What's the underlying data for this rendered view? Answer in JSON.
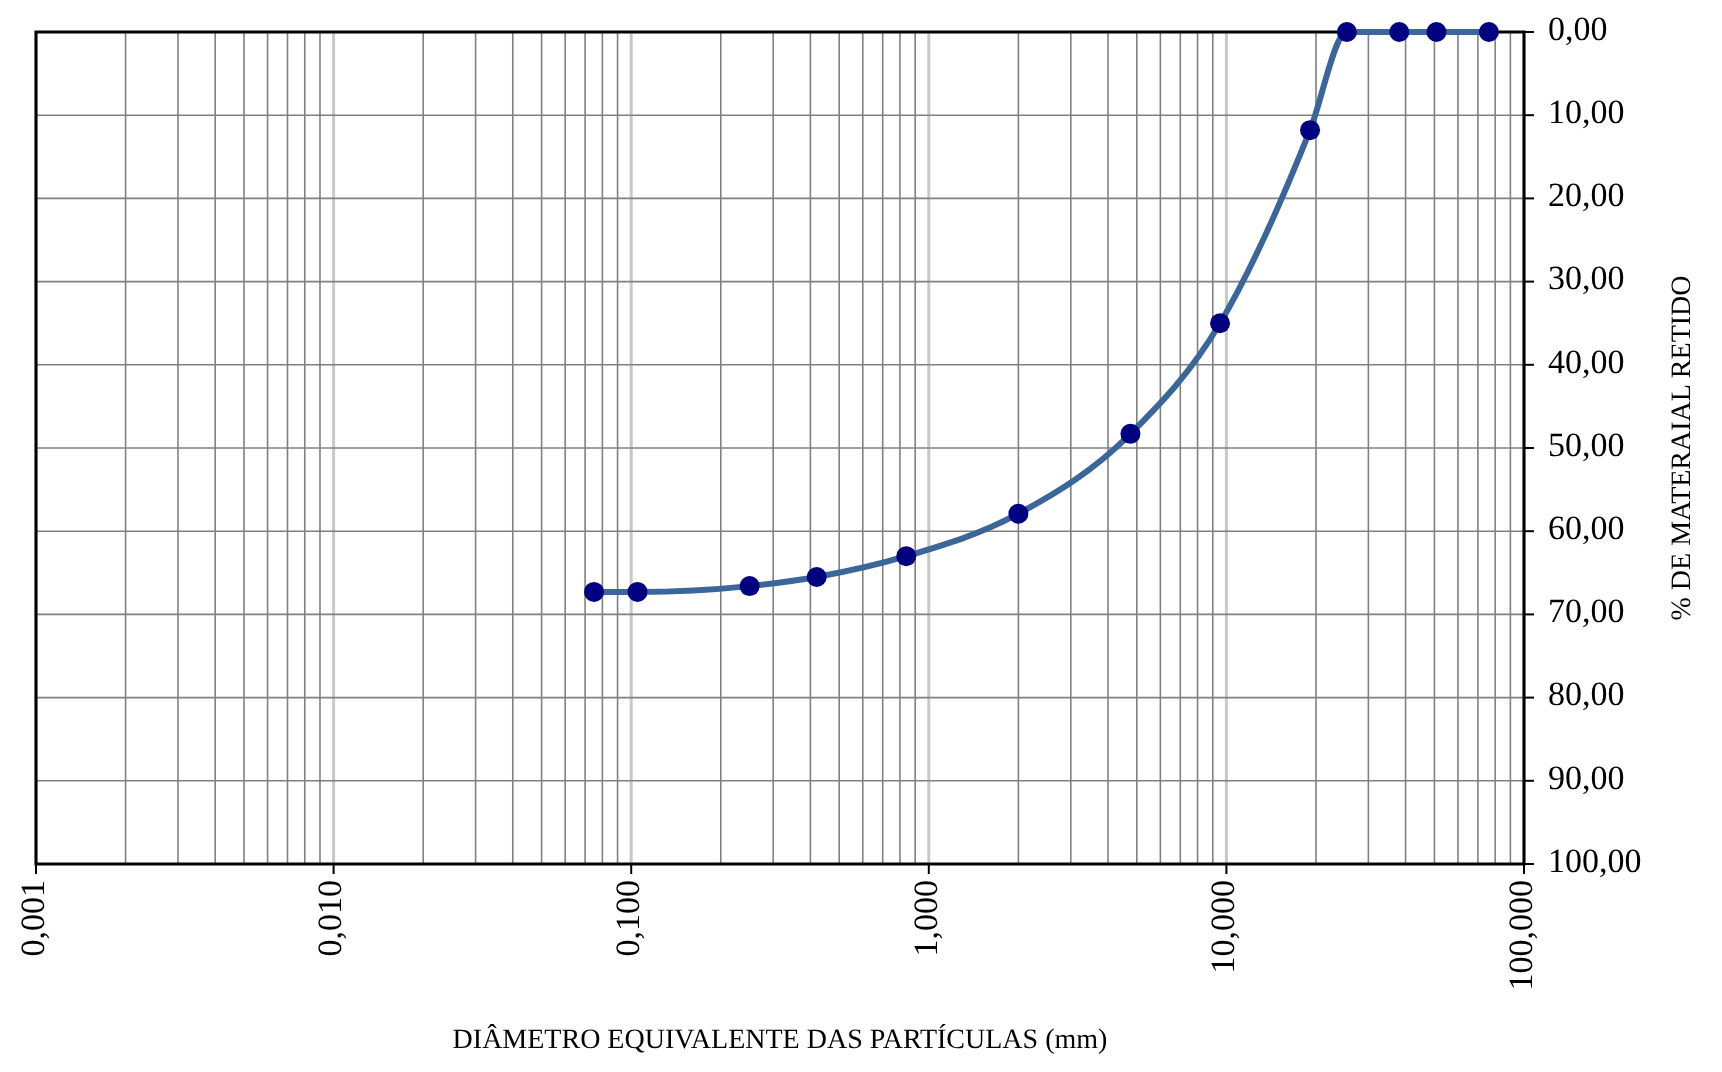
{
  "chart_data": {
    "type": "line",
    "xlabel": "DIÂMETRO EQUIVALENTE DAS PARTÍCULAS (mm)",
    "ylabel": "% DE MATERAIAL RETIDO",
    "log": "x",
    "grid": true,
    "marker": "circle",
    "line_style": "solid",
    "xlim": [
      0.001,
      100
    ],
    "xticks": [
      {
        "value": 0.001,
        "label": "0,001"
      },
      {
        "value": 0.01,
        "label": "0,010"
      },
      {
        "value": 0.1,
        "label": "0,100"
      },
      {
        "value": 1,
        "label": "1,000"
      },
      {
        "value": 10,
        "label": "10,000"
      },
      {
        "value": 100,
        "label": "100,000"
      }
    ],
    "ylim": [
      100,
      0
    ],
    "yticks": [
      {
        "value": 0,
        "label": "0,00"
      },
      {
        "value": 10,
        "label": "10,00"
      },
      {
        "value": 20,
        "label": "20,00"
      },
      {
        "value": 30,
        "label": "30,00"
      },
      {
        "value": 40,
        "label": "40,00"
      },
      {
        "value": 50,
        "label": "50,00"
      },
      {
        "value": 60,
        "label": "60,00"
      },
      {
        "value": 70,
        "label": "70,00"
      },
      {
        "value": 80,
        "label": "80,00"
      },
      {
        "value": 90,
        "label": "90,00"
      },
      {
        "value": 100,
        "label": "100,00"
      }
    ],
    "x": [
      76.2,
      50.8,
      38.1,
      25.4,
      19.1,
      9.52,
      4.76,
      2.0,
      0.84,
      0.42,
      0.25,
      0.105,
      0.075
    ],
    "series": [
      {
        "color": "#3a6699",
        "values": [
          0,
          0,
          0,
          0,
          11.8,
          35.0,
          48.3,
          57.9,
          63.0,
          65.5,
          66.6,
          67.3,
          67.3
        ]
      }
    ]
  }
}
